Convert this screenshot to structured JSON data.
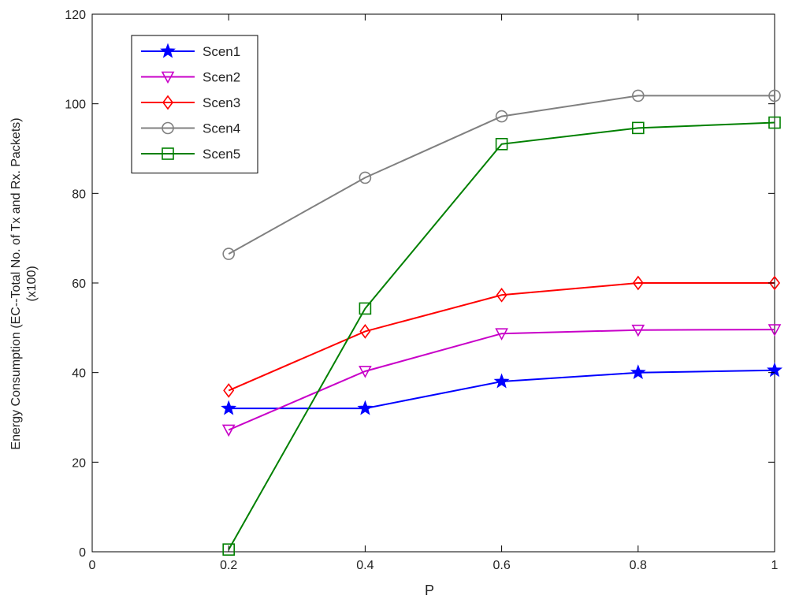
{
  "chart_data": {
    "type": "line",
    "title": "",
    "xlabel": "P",
    "ylabel_line1": "Energy Consumption (EC--Total No. of Tx and Rx. Packets)",
    "ylabel_line2": "(x100)",
    "xlim": [
      0,
      1
    ],
    "ylim": [
      0,
      120
    ],
    "xticks": [
      0,
      0.2,
      0.4,
      0.6,
      0.8,
      1
    ],
    "xtick_labels": [
      "0",
      "0.2",
      "0.4",
      "0.6",
      "0.8",
      "1"
    ],
    "yticks": [
      0,
      20,
      40,
      60,
      80,
      100,
      120
    ],
    "ytick_labels": [
      "0",
      "20",
      "40",
      "60",
      "80",
      "100",
      "120"
    ],
    "grid": false,
    "legend_position": "top-left",
    "x": [
      0.2,
      0.4,
      0.6,
      0.8,
      1.0
    ],
    "series": [
      {
        "name": "Scen1",
        "color": "#0000ff",
        "marker": "star",
        "values": [
          32,
          32,
          38,
          40,
          40.5
        ]
      },
      {
        "name": "Scen2",
        "color": "#c800c8",
        "marker": "triangle",
        "values": [
          27.2,
          40.3,
          48.7,
          49.5,
          49.6
        ]
      },
      {
        "name": "Scen3",
        "color": "#ff0000",
        "marker": "diamond",
        "values": [
          36,
          49.2,
          57.3,
          60,
          60
        ]
      },
      {
        "name": "Scen4",
        "color": "#808080",
        "marker": "circle",
        "values": [
          66.5,
          83.5,
          97.2,
          101.8,
          101.8
        ]
      },
      {
        "name": "Scen5",
        "color": "#008000",
        "marker": "square",
        "values": [
          0.5,
          54.3,
          91,
          94.6,
          95.8
        ]
      }
    ]
  }
}
